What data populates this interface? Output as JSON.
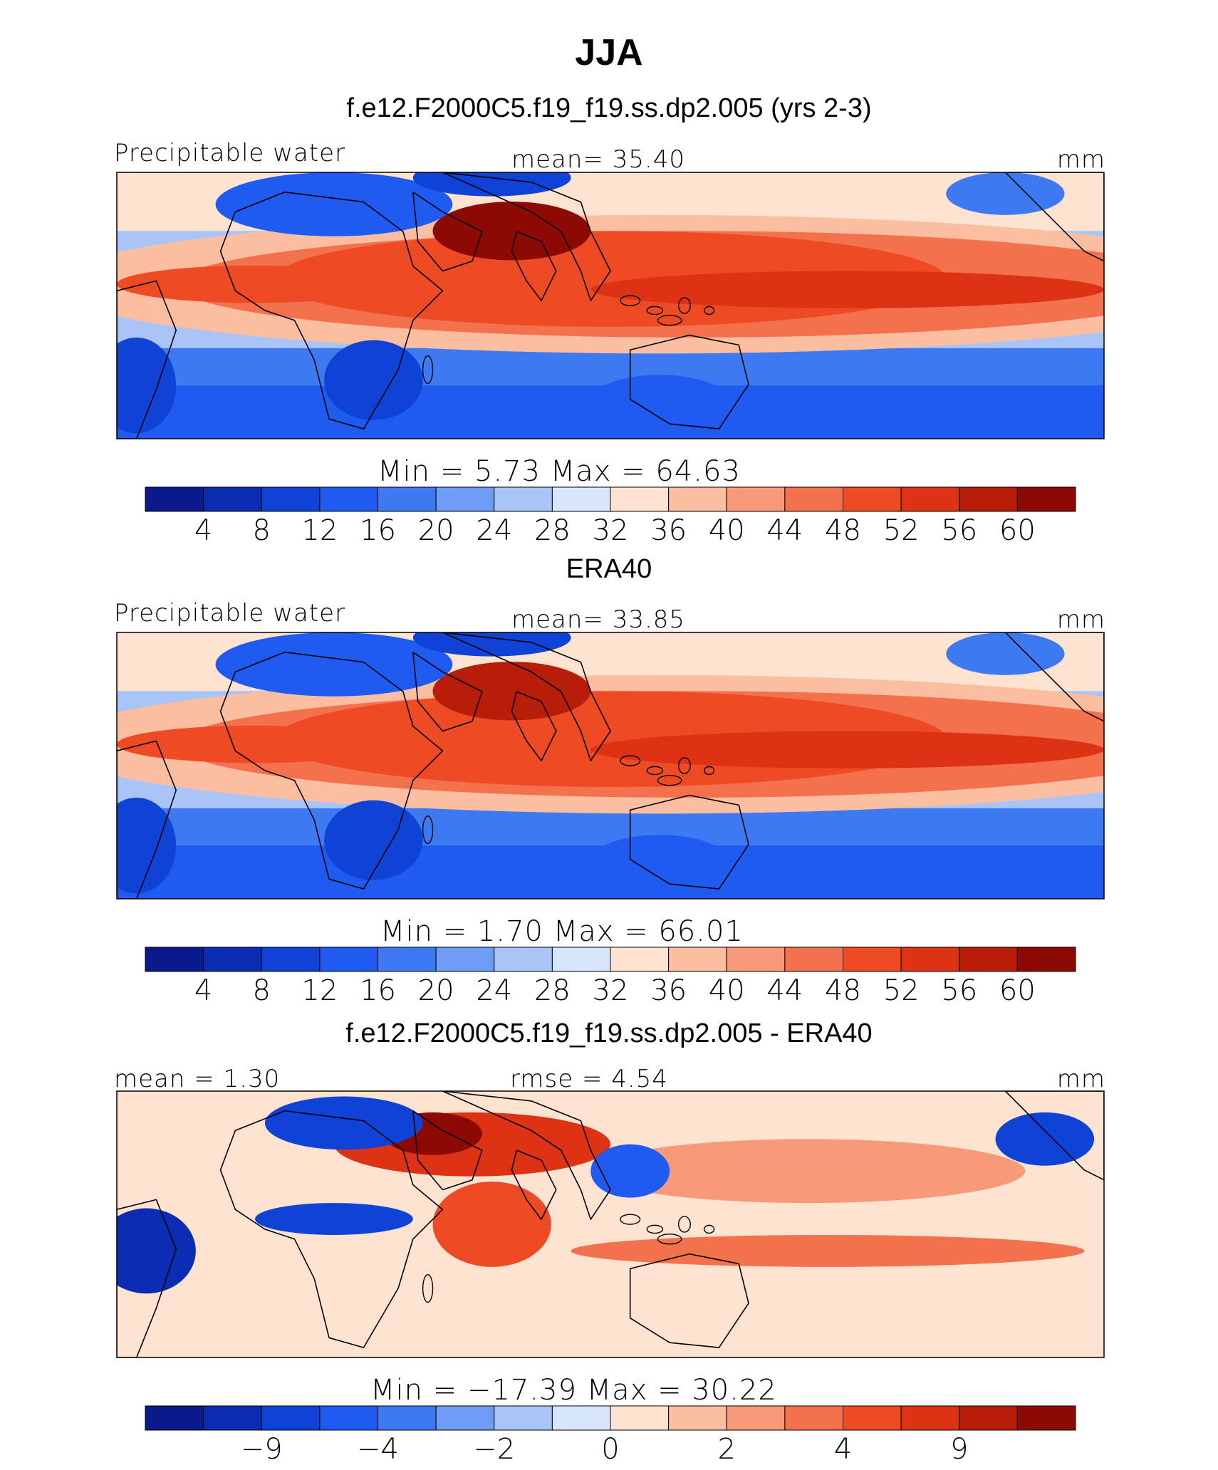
{
  "title": "JJA",
  "colors": {
    "palette": [
      "#0a1a8c",
      "#0b2db4",
      "#0e43d6",
      "#1f5bf0",
      "#3d7af2",
      "#6f9cf4",
      "#a9c5f8",
      "#d7e6fb",
      "#fde3d0",
      "#fbbea1",
      "#f89a78",
      "#f4714d",
      "#ee4a24",
      "#de3214",
      "#b81d0a",
      "#8d0a04"
    ],
    "ocean_warm": "#de3a18",
    "land_line": "#000000"
  },
  "panels": [
    {
      "title": "f.e12.F2000C5.f19_f19.ss.dp2.005 (yrs 2-3)",
      "left_label": "Precipitable water",
      "center_label": "mean=   35.40",
      "units": "mm",
      "minmax_label": "Min  =     5.73  Max  =    64.63",
      "colorbar_ticks": [
        "4",
        "8",
        "12",
        "16",
        "20",
        "24",
        "28",
        "32",
        "36",
        "40",
        "44",
        "48",
        "52",
        "56",
        "60"
      ]
    },
    {
      "title": "ERA40",
      "left_label": "Precipitable water",
      "center_label": "mean=   33.85",
      "units": "mm",
      "minmax_label": "Min  =     1.70  Max  =    66.01",
      "colorbar_ticks": [
        "4",
        "8",
        "12",
        "16",
        "20",
        "24",
        "28",
        "32",
        "36",
        "40",
        "44",
        "48",
        "52",
        "56",
        "60"
      ]
    },
    {
      "title": "f.e12.F2000C5.f19_f19.ss.dp2.005 - ERA40",
      "left_label": "mean =    1.30",
      "center_label": "rmse  =    4.54",
      "units": "mm",
      "minmax_label": "Min  = −17.39  Max  =    30.22",
      "colorbar_ticks": [
        "−9",
        "−4",
        "−2",
        "0",
        "2",
        "4",
        "9"
      ]
    }
  ],
  "chart_data": [
    {
      "type": "heatmap",
      "title": "f.e12.F2000C5.f19_f19.ss.dp2.005 (yrs 2-3)",
      "variable": "Precipitable water",
      "units": "mm",
      "mean": 35.4,
      "min": 5.73,
      "max": 64.63,
      "levels": [
        4,
        8,
        12,
        16,
        20,
        24,
        28,
        32,
        36,
        40,
        44,
        48,
        52,
        56,
        60
      ]
    },
    {
      "type": "heatmap",
      "title": "ERA40",
      "variable": "Precipitable water",
      "units": "mm",
      "mean": 33.85,
      "min": 1.7,
      "max": 66.01,
      "levels": [
        4,
        8,
        12,
        16,
        20,
        24,
        28,
        32,
        36,
        40,
        44,
        48,
        52,
        56,
        60
      ]
    },
    {
      "type": "heatmap",
      "title": "f.e12.F2000C5.f19_f19.ss.dp2.005 - ERA40",
      "units": "mm",
      "mean": 1.3,
      "rmse": 4.54,
      "min": -17.39,
      "max": 30.22,
      "levels": [
        -9,
        -4,
        -2,
        0,
        2,
        4,
        9
      ]
    }
  ]
}
